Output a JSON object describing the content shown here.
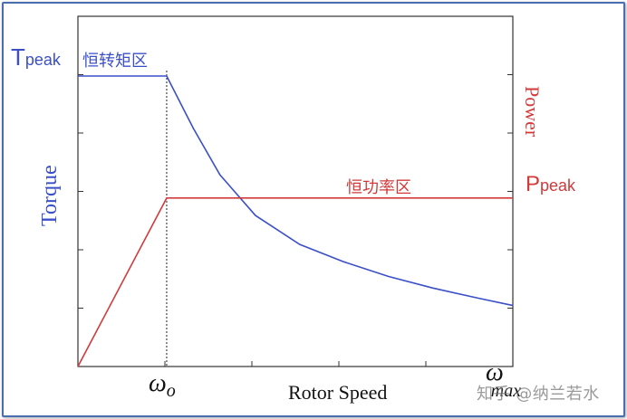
{
  "chart_data": {
    "type": "line",
    "x_ticks": [
      "ω",
      "ω"
    ],
    "x_tick_subs": [
      "o",
      "max"
    ],
    "xlabel": "Rotor Speed",
    "ylabel_left": "Torque",
    "ylabel_right": "Power",
    "ylim": [
      0,
      5
    ],
    "x_range": [
      0,
      4.9
    ],
    "grid": false,
    "series": [
      {
        "name": "",
        "color": "#3a4fc8",
        "points": [
          [
            0,
            5
          ],
          [
            1,
            5
          ],
          [
            1.3,
            4.1
          ],
          [
            1.6,
            3.3
          ],
          [
            2.0,
            2.6
          ],
          [
            2.5,
            2.1
          ],
          [
            3.0,
            1.8
          ],
          [
            3.5,
            1.55
          ],
          [
            4.0,
            1.35
          ],
          [
            4.5,
            1.18
          ],
          [
            4.9,
            1.05
          ]
        ]
      },
      {
        "name": "",
        "color": "#d23a3a",
        "points": [
          [
            0,
            0
          ],
          [
            1,
            2.9
          ],
          [
            4.9,
            2.9
          ]
        ]
      }
    ],
    "annotations": {
      "t_peak": {
        "main": "T",
        "sub": "peak"
      },
      "p_peak": {
        "main": "P",
        "sub": "peak"
      },
      "constant_torque": "恒转矩区",
      "constant_power": "恒功率区"
    }
  },
  "watermark": "知乎 @纳兰若水",
  "colors": {
    "torque": "#3a4fc8",
    "power": "#d23a3a",
    "frame": "#4a6fb0",
    "axis": "#333333"
  }
}
